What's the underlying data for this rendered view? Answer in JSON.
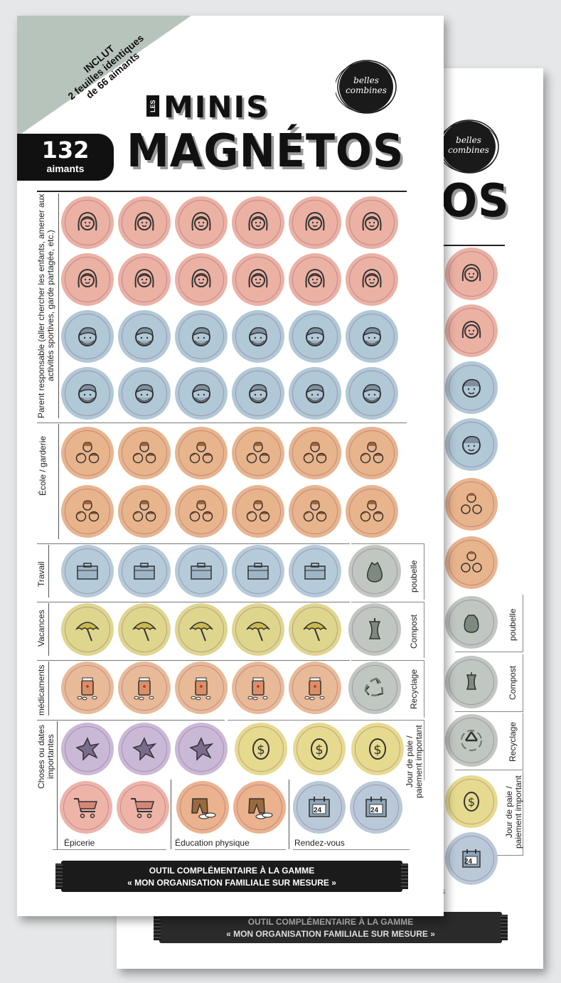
{
  "corner_banner": {
    "line1": "INCLUT",
    "line2": "2 feuilles identiques",
    "line3": "de 66 aimants"
  },
  "count": {
    "number": "132",
    "label": "aimants"
  },
  "logo": {
    "line1": "belles",
    "line2": "combines"
  },
  "title": {
    "les": "LES",
    "minis": "MINIS",
    "magnetos": "MAGNÉTOS",
    "back_fragment": "OS"
  },
  "sections": {
    "parent": "Parent responsable (aller chercher les enfants, amener aux activités sportives, garde partagée, etc.)",
    "ecole": "École / garderie",
    "travail": "Travail",
    "vacances": "Vacances",
    "medicaments": "médicaments",
    "choses": "Choses ou dates importantes",
    "poubelle": "poubelle",
    "compost": "Compost",
    "recyclage": "Recyclage",
    "paie": "Jour de paie / paiement important",
    "epicerie": "Épicerie",
    "education": "Éducation physique",
    "rendezvous": "Rendez-vous"
  },
  "calendar_day": "24",
  "banner": {
    "line1": "OUTIL COMPLÉMENTAIRE À LA GAMME",
    "line2": "« MON ORGANISATION FAMILIALE SUR MESURE »",
    "fragment": "s"
  },
  "icons": [
    "woman-face-icon",
    "man-face-icon",
    "kids-faces-icon",
    "briefcase-icon",
    "umbrella-icon",
    "medicine-icon",
    "star-icon",
    "dollar-icon",
    "trash-bag-icon",
    "apple-core-icon",
    "recycle-icon",
    "shopping-cart-icon",
    "gym-clothes-icon",
    "calendar-icon"
  ],
  "colors": {
    "corner": "#b7c4bc",
    "mom": "#ebb1a3",
    "dad": "#b1c8d6",
    "kids": "#e8b48c",
    "work": "#b5cbd9",
    "vacances": "#dfd68e",
    "medicaments": "#e9ba98",
    "star": "#c9b9d6",
    "pay": "#e6da8f",
    "gray": "#c0c7c1",
    "text": "#111111"
  }
}
